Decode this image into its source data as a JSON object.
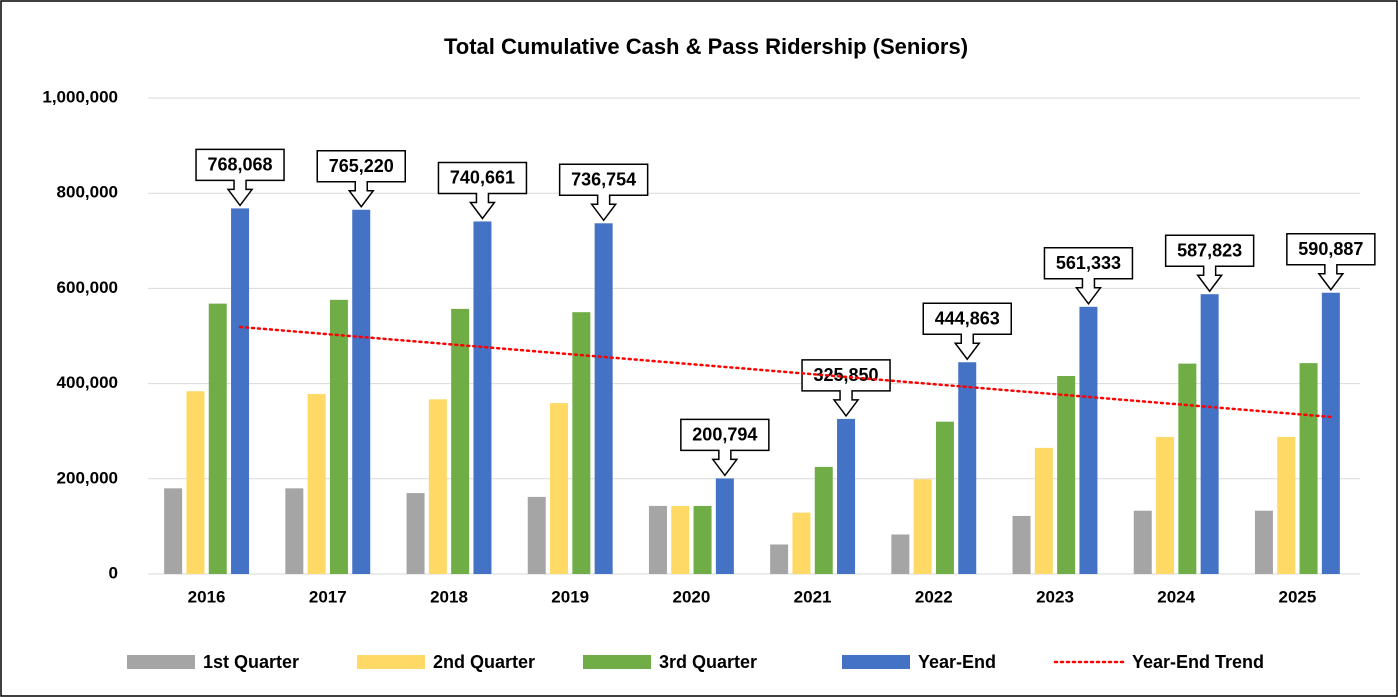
{
  "chart_data": {
    "type": "bar",
    "title": "Total Cumulative Cash & Pass Ridership (Seniors)",
    "categories": [
      "2016",
      "2017",
      "2018",
      "2019",
      "2020",
      "2021",
      "2022",
      "2023",
      "2024",
      "2025"
    ],
    "series": [
      {
        "name": "1st Quarter",
        "color": "#a5a5a5",
        "values": [
          180000,
          180000,
          170000,
          162000,
          143000,
          62000,
          83000,
          122000,
          133000,
          133000
        ]
      },
      {
        "name": "2nd Quarter",
        "color": "#ffd966",
        "values": [
          384000,
          378000,
          367000,
          359000,
          143000,
          129000,
          199000,
          265000,
          288000,
          288000
        ]
      },
      {
        "name": "3rd Quarter",
        "color": "#70ad47",
        "values": [
          568000,
          576000,
          557000,
          550000,
          143000,
          225000,
          320000,
          416000,
          442000,
          443000
        ]
      },
      {
        "name": "Year-End",
        "color": "#4472c4",
        "values": [
          768068,
          765220,
          740661,
          736754,
          200794,
          325850,
          444863,
          561333,
          587823,
          590887
        ],
        "value_labels": [
          "768,068",
          "765,220",
          "740,661",
          "736,754",
          "200,794",
          "325,850",
          "444,863",
          "561,333",
          "587,823",
          "590,887"
        ]
      }
    ],
    "trend": {
      "name": "Year-End Trend",
      "color": "#ff0000",
      "style": "dotted",
      "values": [
        519000,
        498000,
        477000,
        456000,
        435000,
        414000,
        393000,
        372000,
        351000,
        330000
      ]
    },
    "ylim": [
      0,
      1000000
    ],
    "yticks": [
      0,
      {
        "value": 200000,
        "label": "200,000"
      },
      {
        "value": 400000,
        "label": "400,000"
      },
      {
        "value": 600000,
        "label": "600,000"
      },
      {
        "value": 800000,
        "label": "800,000"
      },
      {
        "value": 1000000,
        "label": "1,000,000"
      }
    ],
    "grid": true,
    "legend": "bottom"
  }
}
